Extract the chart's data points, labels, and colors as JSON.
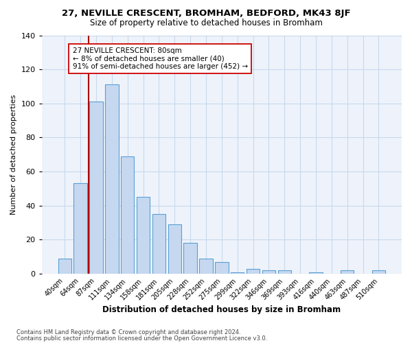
{
  "title1": "27, NEVILLE CRESCENT, BROMHAM, BEDFORD, MK43 8JF",
  "title2": "Size of property relative to detached houses in Bromham",
  "xlabel": "Distribution of detached houses by size in Bromham",
  "ylabel": "Number of detached properties",
  "bar_labels": [
    "40sqm",
    "64sqm",
    "87sqm",
    "111sqm",
    "134sqm",
    "158sqm",
    "181sqm",
    "205sqm",
    "228sqm",
    "252sqm",
    "275sqm",
    "299sqm",
    "322sqm",
    "346sqm",
    "369sqm",
    "393sqm",
    "416sqm",
    "440sqm",
    "463sqm",
    "487sqm",
    "510sqm"
  ],
  "bar_values": [
    9,
    53,
    101,
    111,
    69,
    45,
    35,
    29,
    18,
    9,
    7,
    1,
    3,
    2,
    2,
    0,
    1,
    0,
    2,
    0,
    2
  ],
  "bar_color": "#c5d8f0",
  "bar_edge_color": "#5a9fd4",
  "vline_x": 1.5,
  "vline_color": "#aa0000",
  "annotation_title": "27 NEVILLE CRESCENT: 80sqm",
  "annotation_line1": "← 8% of detached houses are smaller (40)",
  "annotation_line2": "91% of semi-detached houses are larger (452) →",
  "annotation_box_color": "#ffffff",
  "annotation_box_edge_color": "#cc0000",
  "ylim": [
    0,
    140
  ],
  "yticks": [
    0,
    20,
    40,
    60,
    80,
    100,
    120,
    140
  ],
  "footnote1": "Contains HM Land Registry data © Crown copyright and database right 2024.",
  "footnote2": "Contains public sector information licensed under the Open Government Licence v3.0."
}
